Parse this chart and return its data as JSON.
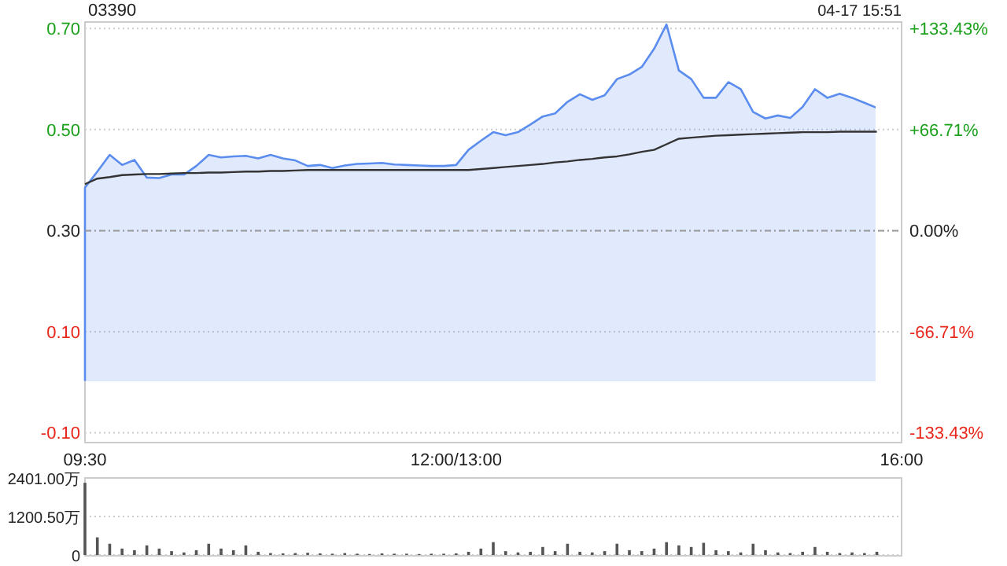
{
  "chart_data": [
    {
      "type": "line",
      "title": "03390",
      "annotations": [
        "04-17 15:51"
      ],
      "categories": [
        "09:30",
        null,
        null,
        null,
        null,
        null,
        null,
        null,
        null,
        null,
        null,
        null,
        null,
        null,
        null,
        null,
        null,
        null,
        null,
        null,
        null,
        null,
        null,
        null,
        null,
        null,
        null,
        null,
        null,
        null,
        "12:00/13:00",
        null,
        null,
        null,
        null,
        null,
        null,
        null,
        null,
        null,
        null,
        null,
        null,
        null,
        null,
        null,
        null,
        null,
        null,
        null,
        null,
        null,
        null,
        null,
        null,
        null,
        null,
        null,
        null,
        null,
        null,
        null,
        null,
        null,
        null,
        null,
        "16:00"
      ],
      "ylim": [
        -0.118,
        0.713
      ],
      "yticks": [
        {
          "value": -0.1,
          "label": "-0.10"
        },
        {
          "value": 0.1,
          "label": "0.10"
        },
        {
          "value": 0.3,
          "label": "0.30"
        },
        {
          "value": 0.5,
          "label": "0.50"
        },
        {
          "value": 0.7,
          "label": "0.70"
        }
      ],
      "y2lim": [
        -139.4,
        137.8
      ],
      "y2ticks": [
        {
          "value": -133.43,
          "label": "-133.43%"
        },
        {
          "value": -66.71,
          "label": "-66.71%"
        },
        {
          "value": 0,
          "label": "0.00%"
        },
        {
          "value": 66.71,
          "label": "+66.71%"
        },
        {
          "value": 133.43,
          "label": "+133.43%"
        }
      ],
      "grid": "y",
      "ref_lines": [
        {
          "axis": "y",
          "value": 0.3,
          "line_style": "dashed"
        }
      ],
      "series": [
        {
          "type": "area",
          "color": "#5b8def",
          "values": [
            0.385,
            0.417,
            0.45,
            0.43,
            0.44,
            0.405,
            0.404,
            0.411,
            0.411,
            0.428,
            0.45,
            0.445,
            0.447,
            0.448,
            0.443,
            0.45,
            0.443,
            0.439,
            0.428,
            0.43,
            0.424,
            0.429,
            0.432,
            0.433,
            0.434,
            0.431,
            0.43,
            0.429,
            0.428,
            0.428,
            0.43,
            0.46,
            0.478,
            0.495,
            0.489,
            0.495,
            0.51,
            0.526,
            0.532,
            0.555,
            0.57,
            0.559,
            0.568,
            0.6,
            0.609,
            0.624,
            0.66,
            0.708,
            0.617,
            0.6,
            0.563,
            0.563,
            0.594,
            0.58,
            0.535,
            0.522,
            0.528,
            0.523,
            0.545,
            0.58,
            0.563,
            0.571,
            0.563,
            0.553,
            0.543,
            null,
            null
          ]
        },
        {
          "color": "#333333",
          "values": [
            0.392,
            0.403,
            0.406,
            0.41,
            0.411,
            0.412,
            0.412,
            0.413,
            0.414,
            0.414,
            0.415,
            0.415,
            0.416,
            0.417,
            0.417,
            0.418,
            0.418,
            0.419,
            0.42,
            0.42,
            0.42,
            0.42,
            0.42,
            0.42,
            0.42,
            0.42,
            0.42,
            0.42,
            0.42,
            0.42,
            0.42,
            0.42,
            0.422,
            0.424,
            0.426,
            0.428,
            0.43,
            0.432,
            0.435,
            0.437,
            0.44,
            0.442,
            0.445,
            0.447,
            0.451,
            0.456,
            0.46,
            0.471,
            0.482,
            0.484,
            0.486,
            0.488,
            0.489,
            0.49,
            0.491,
            0.492,
            0.493,
            0.494,
            0.495,
            0.495,
            0.495,
            0.496,
            0.496,
            0.496,
            0.496,
            null,
            null
          ]
        }
      ]
    },
    {
      "type": "bar",
      "color": "#555555",
      "grid": "y",
      "categories": [
        null,
        null,
        null,
        null,
        null,
        null,
        null,
        null,
        null,
        null,
        null,
        null,
        null,
        null,
        null,
        null,
        null,
        null,
        null,
        null,
        null,
        null,
        null,
        null,
        null,
        null,
        null,
        null,
        null,
        null,
        null,
        null,
        null,
        null,
        null,
        null,
        null,
        null,
        null,
        null,
        null,
        null,
        null,
        null,
        null,
        null,
        null,
        null,
        null,
        null,
        null,
        null,
        null,
        null,
        null,
        null,
        null,
        null,
        null,
        null,
        null,
        null,
        null,
        null,
        null,
        null,
        null
      ],
      "ylim": [
        0,
        2401
      ],
      "yticks": [
        {
          "value": 0,
          "label": "0"
        },
        {
          "value": 1200.5,
          "label": "1200.50万"
        },
        {
          "value": 2401,
          "label": "2401.00万"
        }
      ],
      "values": [
        2250,
        550,
        350,
        200,
        150,
        300,
        200,
        120,
        80,
        150,
        350,
        200,
        150,
        300,
        100,
        60,
        50,
        60,
        70,
        50,
        40,
        60,
        40,
        30,
        50,
        40,
        40,
        30,
        40,
        40,
        50,
        100,
        200,
        400,
        120,
        80,
        100,
        250,
        120,
        350,
        100,
        80,
        120,
        350,
        150,
        120,
        200,
        400,
        300,
        250,
        380,
        150,
        120,
        80,
        350,
        150,
        80,
        60,
        100,
        250,
        100,
        60,
        80,
        60,
        100,
        null,
        null
      ]
    }
  ]
}
